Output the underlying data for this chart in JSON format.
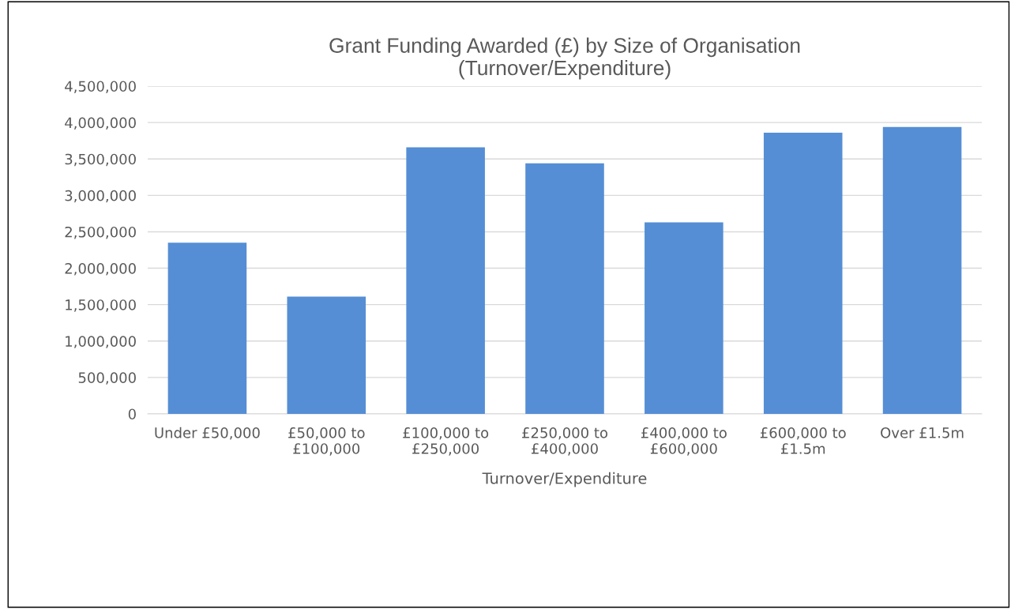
{
  "chart_data": {
    "type": "bar",
    "title": "Grant Funding Awarded (£) by Size of Organisation\n(Turnover/Expenditure)",
    "xlabel": "Turnover/Expenditure",
    "categories": [
      "Under £50,000",
      "£50,000 to\n£100,000",
      "£100,000 to\n£250,000",
      "£250,000 to\n£400,000",
      "£400,000 to\n£600,000",
      "£600,000 to\n£1.5m",
      "Over £1.5m"
    ],
    "values": [
      2350000,
      1610000,
      3660000,
      3440000,
      2630000,
      3860000,
      3940000
    ],
    "color": "#558ed5",
    "ylim": [
      0,
      4500000
    ],
    "yticks": [
      {
        "value": 0,
        "label": "0"
      },
      {
        "value": 500000,
        "label": "500,000"
      },
      {
        "value": 1000000,
        "label": "1,000,000"
      },
      {
        "value": 1500000,
        "label": "1,500,000"
      },
      {
        "value": 2000000,
        "label": "2,000,000"
      },
      {
        "value": 2500000,
        "label": "2,500,000"
      },
      {
        "value": 3000000,
        "label": "3,000,000"
      },
      {
        "value": 3500000,
        "label": "3,500,000"
      },
      {
        "value": 4000000,
        "label": "4,000,000"
      },
      {
        "value": 4500000,
        "label": "4,500,000"
      }
    ],
    "grid": "y"
  }
}
